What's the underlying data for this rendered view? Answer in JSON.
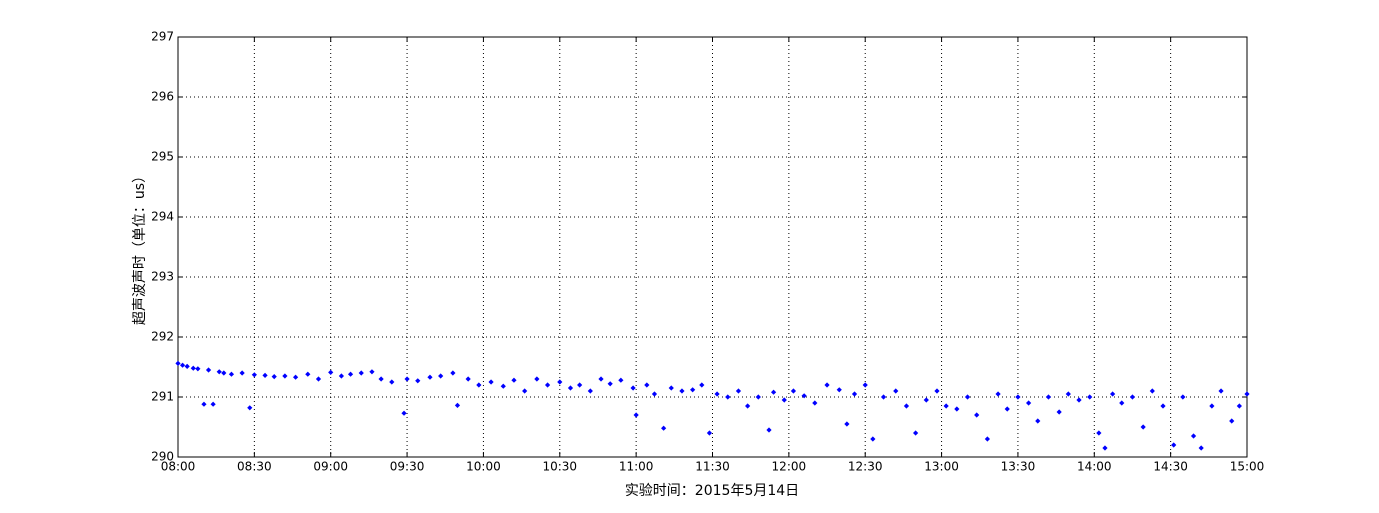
{
  "chart_data": {
    "type": "scatter",
    "xlabel": "实验时间：2015年5月14日",
    "ylabel": "超声波声时（单位：us）",
    "xlim": [
      8,
      15
    ],
    "ylim": [
      290,
      297
    ],
    "xticks": [
      {
        "value": 8,
        "label": "08:00"
      },
      {
        "value": 8.5,
        "label": "08:30"
      },
      {
        "value": 9,
        "label": "09:00"
      },
      {
        "value": 9.5,
        "label": "09:30"
      },
      {
        "value": 10,
        "label": "10:00"
      },
      {
        "value": 10.5,
        "label": "10:30"
      },
      {
        "value": 11,
        "label": "11:00"
      },
      {
        "value": 11.5,
        "label": "11:30"
      },
      {
        "value": 12,
        "label": "12:00"
      },
      {
        "value": 12.5,
        "label": "12:30"
      },
      {
        "value": 13,
        "label": "13:00"
      },
      {
        "value": 13.5,
        "label": "13:30"
      },
      {
        "value": 14,
        "label": "14:00"
      },
      {
        "value": 14.5,
        "label": "14:30"
      },
      {
        "value": 15,
        "label": "15:00"
      }
    ],
    "yticks": [
      290,
      291,
      292,
      293,
      294,
      295,
      296,
      297
    ],
    "grid": true,
    "series": [
      {
        "color": "#0000ff",
        "x": [
          8.0,
          8.03,
          8.06,
          8.1,
          8.13,
          8.17,
          8.2,
          8.23,
          8.27,
          8.3,
          8.35,
          8.42,
          8.47,
          8.5,
          8.57,
          8.63,
          8.7,
          8.77,
          8.85,
          8.92,
          9.0,
          9.07,
          9.13,
          9.2,
          9.27,
          9.33,
          9.4,
          9.48,
          9.5,
          9.57,
          9.65,
          9.72,
          9.8,
          9.83,
          9.9,
          9.97,
          10.05,
          10.13,
          10.2,
          10.27,
          10.35,
          10.42,
          10.5,
          10.57,
          10.63,
          10.7,
          10.77,
          10.83,
          10.9,
          10.98,
          11.0,
          11.07,
          11.12,
          11.18,
          11.23,
          11.3,
          11.37,
          11.43,
          11.48,
          11.53,
          11.6,
          11.67,
          11.73,
          11.8,
          11.87,
          11.9,
          11.97,
          12.03,
          12.1,
          12.17,
          12.25,
          12.33,
          12.38,
          12.43,
          12.5,
          12.55,
          12.62,
          12.7,
          12.77,
          12.83,
          12.9,
          12.97,
          13.03,
          13.1,
          13.17,
          13.23,
          13.3,
          13.37,
          13.43,
          13.5,
          13.57,
          13.63,
          13.7,
          13.77,
          13.83,
          13.9,
          13.97,
          14.03,
          14.07,
          14.12,
          14.18,
          14.25,
          14.32,
          14.38,
          14.45,
          14.52,
          14.58,
          14.65,
          14.7,
          14.77,
          14.83,
          14.9,
          14.95,
          15.0
        ],
        "values": [
          291.56,
          291.53,
          291.51,
          291.48,
          291.47,
          290.88,
          291.45,
          290.88,
          291.42,
          291.4,
          291.38,
          291.4,
          290.82,
          291.37,
          291.36,
          291.34,
          291.35,
          291.33,
          291.38,
          291.3,
          291.41,
          291.35,
          291.38,
          291.4,
          291.42,
          291.3,
          291.25,
          290.73,
          291.3,
          291.27,
          291.33,
          291.35,
          291.4,
          290.86,
          291.3,
          291.2,
          291.25,
          291.18,
          291.28,
          291.1,
          291.3,
          291.2,
          291.25,
          291.15,
          291.2,
          291.1,
          291.3,
          291.22,
          291.28,
          291.15,
          290.7,
          291.2,
          291.05,
          290.48,
          291.15,
          291.1,
          291.12,
          291.2,
          290.4,
          291.05,
          291.0,
          291.1,
          290.85,
          291.0,
          290.45,
          291.08,
          290.95,
          291.1,
          291.02,
          290.9,
          291.2,
          291.12,
          290.55,
          291.05,
          291.2,
          290.3,
          291.0,
          291.1,
          290.85,
          290.4,
          290.95,
          291.1,
          290.85,
          290.8,
          291.0,
          290.7,
          290.3,
          291.05,
          290.8,
          291.0,
          290.9,
          290.6,
          291.0,
          290.75,
          291.05,
          290.95,
          291.0,
          290.4,
          290.15,
          291.05,
          290.9,
          291.0,
          290.5,
          291.1,
          290.85,
          290.2,
          291.0,
          290.35,
          290.15,
          290.85,
          291.1,
          290.6,
          290.85,
          291.05
        ]
      }
    ]
  }
}
